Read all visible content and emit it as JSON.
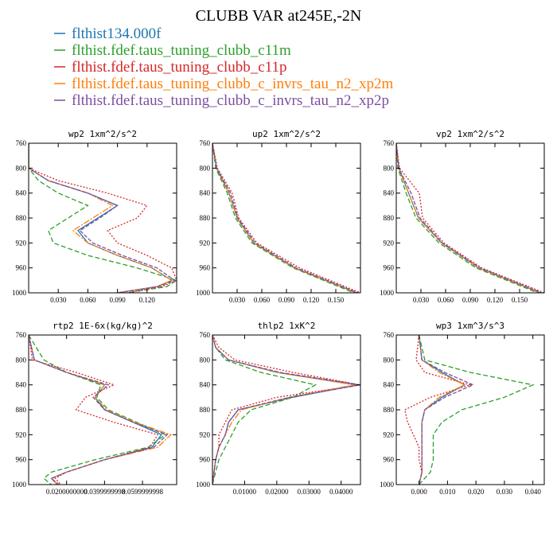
{
  "title": "CLUBB VAR at245E,-2N",
  "legend": [
    {
      "label": "flthist134.000f",
      "color": "#1f77b4"
    },
    {
      "label": "flthist.fdef.taus_tuning_clubb_c11m",
      "color": "#2ca02c"
    },
    {
      "label": "flthist.fdef.taus_tuning_clubb_c11p",
      "color": "#d62728"
    },
    {
      "label": "flthist.fdef.taus_tuning_clubb_c_invrs_tau_n2_xp2m",
      "color": "#ff7f0e"
    },
    {
      "label": "flthist.fdef.taus_tuning_clubb_c_invrs_tau_n2_xp2p",
      "color": "#7b4fa0"
    }
  ],
  "chart_data": [
    {
      "type": "line",
      "title": "wp2  1xm^2/s^2",
      "xlim": [
        0,
        0.15
      ],
      "ylim": [
        760,
        1000
      ],
      "xticks": [
        0.03,
        0.06,
        0.09,
        0.12
      ],
      "xticklabels": [
        "0.030",
        "0.060",
        "0.090",
        "0.120"
      ],
      "yticks": [
        760,
        800,
        840,
        880,
        920,
        960,
        1000
      ],
      "y": [
        760,
        800,
        820,
        840,
        860,
        880,
        900,
        920,
        940,
        960,
        980,
        990,
        1000
      ],
      "series": [
        {
          "values": [
            0,
            0,
            0.02,
            0.06,
            0.09,
            0.07,
            0.05,
            0.06,
            0.09,
            0.125,
            0.145,
            0.13,
            0.09
          ]
        },
        {
          "values": [
            0,
            0,
            0.01,
            0.03,
            0.06,
            0.04,
            0.02,
            0.025,
            0.06,
            0.11,
            0.15,
            0.14,
            0.1
          ]
        },
        {
          "values": [
            0,
            0,
            0.03,
            0.08,
            0.12,
            0.11,
            0.08,
            0.09,
            0.12,
            0.145,
            0.15,
            0.135,
            0.1
          ]
        },
        {
          "values": [
            0,
            0,
            0.02,
            0.06,
            0.085,
            0.065,
            0.045,
            0.06,
            0.09,
            0.125,
            0.145,
            0.13,
            0.09
          ]
        },
        {
          "values": [
            0,
            0,
            0.02,
            0.06,
            0.09,
            0.072,
            0.052,
            0.065,
            0.095,
            0.13,
            0.148,
            0.132,
            0.09
          ]
        }
      ]
    },
    {
      "type": "line",
      "title": "up2  1xm^2/s^2",
      "xlim": [
        0,
        0.18
      ],
      "ylim": [
        760,
        1000
      ],
      "xticks": [
        0.03,
        0.06,
        0.09,
        0.12,
        0.15
      ],
      "xticklabels": [
        "0.030",
        "0.060",
        "0.090",
        "0.120",
        "0.150"
      ],
      "yticks": [
        760,
        800,
        840,
        880,
        920,
        960,
        1000
      ],
      "y": [
        760,
        800,
        840,
        880,
        920,
        960,
        1000
      ],
      "series": [
        {
          "values": [
            0,
            0.005,
            0.02,
            0.03,
            0.05,
            0.1,
            0.175
          ]
        },
        {
          "values": [
            0,
            0.004,
            0.018,
            0.028,
            0.048,
            0.098,
            0.172
          ]
        },
        {
          "values": [
            0,
            0.006,
            0.024,
            0.032,
            0.054,
            0.106,
            0.18
          ]
        },
        {
          "values": [
            0,
            0.005,
            0.02,
            0.03,
            0.05,
            0.1,
            0.175
          ]
        },
        {
          "values": [
            0,
            0.005,
            0.022,
            0.031,
            0.052,
            0.102,
            0.177
          ]
        }
      ]
    },
    {
      "type": "line",
      "title": "vp2  1xm^2/s^2",
      "xlim": [
        0,
        0.18
      ],
      "ylim": [
        760,
        1000
      ],
      "xticks": [
        0.03,
        0.06,
        0.09,
        0.12,
        0.15
      ],
      "xticklabels": [
        "0.030",
        "0.060",
        "0.090",
        "0.120",
        "0.150"
      ],
      "yticks": [
        760,
        800,
        840,
        880,
        920,
        960,
        1000
      ],
      "y": [
        760,
        800,
        840,
        880,
        920,
        960,
        1000
      ],
      "series": [
        {
          "values": [
            0,
            0.003,
            0.015,
            0.027,
            0.055,
            0.1,
            0.175
          ]
        },
        {
          "values": [
            0,
            0.002,
            0.012,
            0.024,
            0.052,
            0.097,
            0.172
          ]
        },
        {
          "values": [
            0,
            0.004,
            0.028,
            0.032,
            0.058,
            0.104,
            0.18
          ]
        },
        {
          "values": [
            0,
            0.003,
            0.015,
            0.027,
            0.055,
            0.1,
            0.175
          ]
        },
        {
          "values": [
            0,
            0.003,
            0.018,
            0.029,
            0.056,
            0.102,
            0.177
          ]
        }
      ]
    },
    {
      "type": "line",
      "title": "rtp2  1E-6x(kg/kg)^2",
      "xlim": [
        0,
        0.078
      ],
      "ylim": [
        760,
        1000
      ],
      "xticks": [
        0.02,
        0.04,
        0.06
      ],
      "xticklabels": [
        "0.0200000000",
        "0.0399999998",
        "0.0599999998"
      ],
      "yticks": [
        760,
        800,
        840,
        880,
        920,
        960,
        1000
      ],
      "y": [
        760,
        800,
        820,
        840,
        860,
        880,
        900,
        920,
        940,
        960,
        980,
        990,
        1000
      ],
      "series": [
        {
          "values": [
            0,
            0.003,
            0.02,
            0.04,
            0.035,
            0.04,
            0.055,
            0.07,
            0.065,
            0.04,
            0.02,
            0.012,
            0.015
          ]
        },
        {
          "values": [
            0,
            0.008,
            0.02,
            0.038,
            0.036,
            0.042,
            0.057,
            0.072,
            0.063,
            0.035,
            0.012,
            0.008,
            0.012
          ]
        },
        {
          "values": [
            0,
            0.002,
            0.025,
            0.045,
            0.03,
            0.025,
            0.045,
            0.068,
            0.064,
            0.04,
            0.02,
            0.014,
            0.017
          ]
        },
        {
          "values": [
            0,
            0.003,
            0.02,
            0.04,
            0.035,
            0.041,
            0.056,
            0.075,
            0.068,
            0.04,
            0.02,
            0.012,
            0.015
          ]
        },
        {
          "values": [
            0,
            0.003,
            0.02,
            0.042,
            0.034,
            0.04,
            0.055,
            0.073,
            0.066,
            0.04,
            0.02,
            0.012,
            0.016
          ]
        }
      ]
    },
    {
      "type": "line",
      "title": "thlp2  1xK^2",
      "xlim": [
        0,
        0.046
      ],
      "ylim": [
        760,
        1000
      ],
      "xticks": [
        0.01,
        0.02,
        0.03,
        0.04
      ],
      "xticklabels": [
        "0.01000",
        "0.02000",
        "0.03000",
        "0.04000"
      ],
      "yticks": [
        760,
        800,
        840,
        880,
        920,
        960,
        1000
      ],
      "y": [
        760,
        780,
        800,
        820,
        840,
        860,
        880,
        900,
        920,
        940,
        960,
        980,
        1000
      ],
      "series": [
        {
          "values": [
            0,
            0.001,
            0.005,
            0.02,
            0.045,
            0.025,
            0.008,
            0.005,
            0.004,
            0.002,
            0.001,
            0.0005,
            0
          ]
        },
        {
          "values": [
            0,
            0.001,
            0.004,
            0.015,
            0.032,
            0.025,
            0.012,
            0.008,
            0.006,
            0.004,
            0.002,
            0.001,
            0
          ]
        },
        {
          "values": [
            0,
            0.002,
            0.007,
            0.025,
            0.046,
            0.02,
            0.006,
            0.004,
            0.002,
            0.002,
            0.001,
            0.0005,
            0
          ]
        },
        {
          "values": [
            0,
            0.001,
            0.005,
            0.02,
            0.044,
            0.024,
            0.009,
            0.006,
            0.004,
            0.002,
            0.001,
            0.0005,
            0
          ]
        },
        {
          "values": [
            0,
            0.001,
            0.005,
            0.021,
            0.046,
            0.024,
            0.008,
            0.005,
            0.004,
            0.002,
            0.001,
            0.0005,
            0
          ]
        }
      ]
    },
    {
      "type": "line",
      "title": "wp3  1xm^3/s^3",
      "xlim": [
        -0.008,
        0.044
      ],
      "ylim": [
        760,
        1000
      ],
      "xticks": [
        0,
        0.01,
        0.02,
        0.03,
        0.04
      ],
      "xticklabels": [
        "0.000",
        "0.010",
        "0.020",
        "0.030",
        "0.040"
      ],
      "yticks": [
        760,
        800,
        840,
        880,
        920,
        960,
        1000
      ],
      "y": [
        760,
        800,
        820,
        840,
        860,
        880,
        900,
        920,
        940,
        960,
        980,
        1000
      ],
      "series": [
        {
          "values": [
            0,
            0.001,
            0.008,
            0.016,
            0.008,
            0.002,
            0.001,
            0.001,
            0.001,
            0.001,
            0.001,
            0
          ]
        },
        {
          "values": [
            0,
            0.002,
            0.018,
            0.04,
            0.03,
            0.015,
            0.008,
            0.005,
            0.005,
            0.005,
            0.004,
            0
          ]
        },
        {
          "values": [
            0,
            -0.001,
            0.002,
            0.018,
            0.004,
            -0.005,
            -0.004,
            -0.002,
            0,
            0,
            0.001,
            0
          ]
        },
        {
          "values": [
            0,
            0.001,
            0.007,
            0.016,
            0.007,
            0.002,
            0.001,
            0.001,
            0.001,
            0.001,
            0.001,
            0
          ]
        },
        {
          "values": [
            0,
            0.001,
            0.009,
            0.019,
            0.009,
            0.002,
            0.001,
            0.001,
            0.001,
            0.001,
            0.001,
            0
          ]
        }
      ]
    }
  ]
}
